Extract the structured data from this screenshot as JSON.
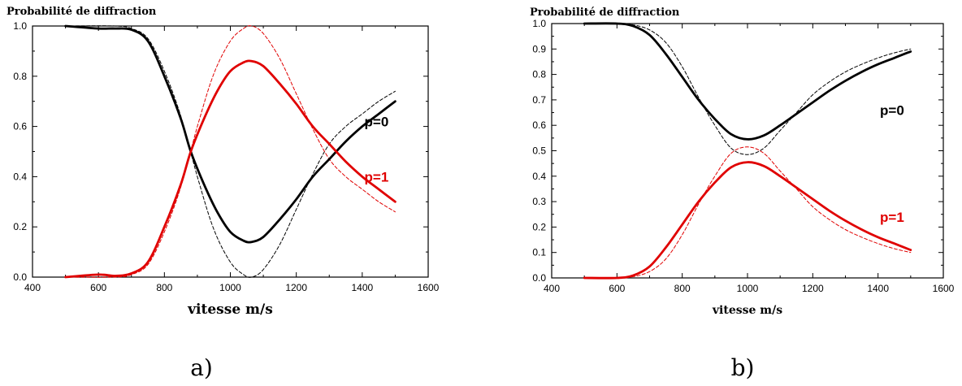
{
  "figure": {
    "captions": [
      "a)",
      "b)"
    ]
  },
  "chart_data": [
    {
      "type": "line",
      "ylabel": "Probabilité de diffraction",
      "xlabel": "vitesse m/s",
      "xlim": [
        400,
        1600
      ],
      "ylim": [
        0,
        1
      ],
      "xticks": [
        "400",
        "600",
        "800",
        "1000",
        "1200",
        "1400",
        "1600"
      ],
      "yticks": [
        "0.0",
        "0.2",
        "0.4",
        "0.6",
        "0.8",
        "1.0"
      ],
      "grid": false,
      "series": [
        {
          "name": "p=0",
          "color": "#000000",
          "style": "solid",
          "points": [
            [
              500,
              1.0
            ],
            [
              600,
              0.99
            ],
            [
              650,
              0.99
            ],
            [
              700,
              0.985
            ],
            [
              750,
              0.94
            ],
            [
              800,
              0.8
            ],
            [
              850,
              0.63
            ],
            [
              880,
              0.5
            ],
            [
              920,
              0.37
            ],
            [
              960,
              0.26
            ],
            [
              1000,
              0.18
            ],
            [
              1040,
              0.145
            ],
            [
              1065,
              0.14
            ],
            [
              1100,
              0.16
            ],
            [
              1150,
              0.23
            ],
            [
              1200,
              0.31
            ],
            [
              1250,
              0.4
            ],
            [
              1300,
              0.47
            ],
            [
              1350,
              0.54
            ],
            [
              1400,
              0.6
            ],
            [
              1450,
              0.65
            ],
            [
              1500,
              0.7
            ]
          ]
        },
        {
          "name": "p=1",
          "color": "#e00000",
          "style": "solid",
          "points": [
            [
              500,
              0.0
            ],
            [
              600,
              0.01
            ],
            [
              650,
              0.005
            ],
            [
              700,
              0.015
            ],
            [
              750,
              0.06
            ],
            [
              800,
              0.2
            ],
            [
              850,
              0.37
            ],
            [
              880,
              0.5
            ],
            [
              920,
              0.63
            ],
            [
              960,
              0.74
            ],
            [
              1000,
              0.82
            ],
            [
              1040,
              0.855
            ],
            [
              1065,
              0.86
            ],
            [
              1100,
              0.84
            ],
            [
              1150,
              0.77
            ],
            [
              1200,
              0.69
            ],
            [
              1250,
              0.6
            ],
            [
              1300,
              0.53
            ],
            [
              1350,
              0.46
            ],
            [
              1400,
              0.4
            ],
            [
              1450,
              0.35
            ],
            [
              1500,
              0.3
            ]
          ]
        },
        {
          "name": "",
          "color": "#000000",
          "style": "dashed",
          "points": [
            [
              500,
              1.0
            ],
            [
              650,
              1.0
            ],
            [
              700,
              0.99
            ],
            [
              750,
              0.95
            ],
            [
              800,
              0.82
            ],
            [
              850,
              0.64
            ],
            [
              900,
              0.4
            ],
            [
              950,
              0.19
            ],
            [
              1000,
              0.06
            ],
            [
              1040,
              0.01
            ],
            [
              1065,
              0.0
            ],
            [
              1100,
              0.03
            ],
            [
              1150,
              0.13
            ],
            [
              1200,
              0.27
            ],
            [
              1250,
              0.41
            ],
            [
              1300,
              0.53
            ],
            [
              1350,
              0.6
            ],
            [
              1400,
              0.65
            ],
            [
              1450,
              0.7
            ],
            [
              1500,
              0.74
            ]
          ]
        },
        {
          "name": "",
          "color": "#e00000",
          "style": "dashed",
          "points": [
            [
              500,
              0.0
            ],
            [
              650,
              0.0
            ],
            [
              700,
              0.01
            ],
            [
              750,
              0.05
            ],
            [
              800,
              0.18
            ],
            [
              850,
              0.36
            ],
            [
              900,
              0.6
            ],
            [
              950,
              0.81
            ],
            [
              1000,
              0.94
            ],
            [
              1040,
              0.99
            ],
            [
              1065,
              1.0
            ],
            [
              1100,
              0.97
            ],
            [
              1150,
              0.87
            ],
            [
              1200,
              0.73
            ],
            [
              1250,
              0.59
            ],
            [
              1300,
              0.47
            ],
            [
              1350,
              0.4
            ],
            [
              1400,
              0.35
            ],
            [
              1450,
              0.3
            ],
            [
              1500,
              0.26
            ]
          ]
        }
      ],
      "annotations": [
        {
          "text": "p=0",
          "x": 1480,
          "y": 0.62,
          "color": "#000000"
        },
        {
          "text": "p=1",
          "x": 1480,
          "y": 0.4,
          "color": "#e00000"
        }
      ]
    },
    {
      "type": "line",
      "ylabel": "Probabilité de diffraction",
      "xlabel": "vitesse m/s",
      "xlim": [
        400,
        1600
      ],
      "ylim": [
        0,
        1
      ],
      "xticks": [
        "400",
        "600",
        "800",
        "1000",
        "1200",
        "1400",
        "1600"
      ],
      "yticks": [
        "0.0",
        "0.1",
        "0.2",
        "0.3",
        "0.4",
        "0.5",
        "0.6",
        "0.7",
        "0.8",
        "0.9",
        "1.0"
      ],
      "grid": false,
      "series": [
        {
          "name": "p=0",
          "color": "#000000",
          "style": "solid",
          "points": [
            [
              500,
              1.0
            ],
            [
              600,
              1.0
            ],
            [
              650,
              0.99
            ],
            [
              700,
              0.955
            ],
            [
              750,
              0.88
            ],
            [
              800,
              0.79
            ],
            [
              850,
              0.7
            ],
            [
              900,
              0.625
            ],
            [
              950,
              0.565
            ],
            [
              1000,
              0.545
            ],
            [
              1050,
              0.56
            ],
            [
              1100,
              0.6
            ],
            [
              1150,
              0.645
            ],
            [
              1200,
              0.69
            ],
            [
              1250,
              0.735
            ],
            [
              1300,
              0.775
            ],
            [
              1350,
              0.81
            ],
            [
              1400,
              0.84
            ],
            [
              1450,
              0.865
            ],
            [
              1500,
              0.89
            ]
          ]
        },
        {
          "name": "p=1",
          "color": "#e00000",
          "style": "solid",
          "points": [
            [
              500,
              0.0
            ],
            [
              600,
              0.0
            ],
            [
              650,
              0.01
            ],
            [
              700,
              0.045
            ],
            [
              750,
              0.12
            ],
            [
              800,
              0.21
            ],
            [
              850,
              0.3
            ],
            [
              900,
              0.375
            ],
            [
              950,
              0.435
            ],
            [
              1000,
              0.455
            ],
            [
              1050,
              0.44
            ],
            [
              1100,
              0.4
            ],
            [
              1150,
              0.355
            ],
            [
              1200,
              0.31
            ],
            [
              1250,
              0.265
            ],
            [
              1300,
              0.225
            ],
            [
              1350,
              0.19
            ],
            [
              1400,
              0.16
            ],
            [
              1450,
              0.135
            ],
            [
              1500,
              0.11
            ]
          ]
        },
        {
          "name": "",
          "color": "#000000",
          "style": "dashed",
          "points": [
            [
              500,
              1.0
            ],
            [
              600,
              1.0
            ],
            [
              650,
              0.995
            ],
            [
              700,
              0.975
            ],
            [
              750,
              0.925
            ],
            [
              800,
              0.83
            ],
            [
              850,
              0.71
            ],
            [
              900,
              0.6
            ],
            [
              950,
              0.51
            ],
            [
              1000,
              0.485
            ],
            [
              1050,
              0.51
            ],
            [
              1100,
              0.58
            ],
            [
              1150,
              0.65
            ],
            [
              1200,
              0.72
            ],
            [
              1250,
              0.77
            ],
            [
              1300,
              0.81
            ],
            [
              1350,
              0.84
            ],
            [
              1400,
              0.865
            ],
            [
              1450,
              0.885
            ],
            [
              1500,
              0.9
            ]
          ]
        },
        {
          "name": "",
          "color": "#e00000",
          "style": "dashed",
          "points": [
            [
              500,
              0.0
            ],
            [
              600,
              0.0
            ],
            [
              650,
              0.005
            ],
            [
              700,
              0.025
            ],
            [
              750,
              0.075
            ],
            [
              800,
              0.17
            ],
            [
              850,
              0.29
            ],
            [
              900,
              0.4
            ],
            [
              950,
              0.49
            ],
            [
              1000,
              0.515
            ],
            [
              1050,
              0.49
            ],
            [
              1100,
              0.42
            ],
            [
              1150,
              0.35
            ],
            [
              1200,
              0.28
            ],
            [
              1250,
              0.23
            ],
            [
              1300,
              0.19
            ],
            [
              1350,
              0.16
            ],
            [
              1400,
              0.135
            ],
            [
              1450,
              0.115
            ],
            [
              1500,
              0.1
            ]
          ]
        }
      ],
      "annotations": [
        {
          "text": "p=0",
          "x": 1480,
          "y": 0.66,
          "color": "#000000"
        },
        {
          "text": "p=1",
          "x": 1480,
          "y": 0.24,
          "color": "#e00000"
        }
      ]
    }
  ]
}
